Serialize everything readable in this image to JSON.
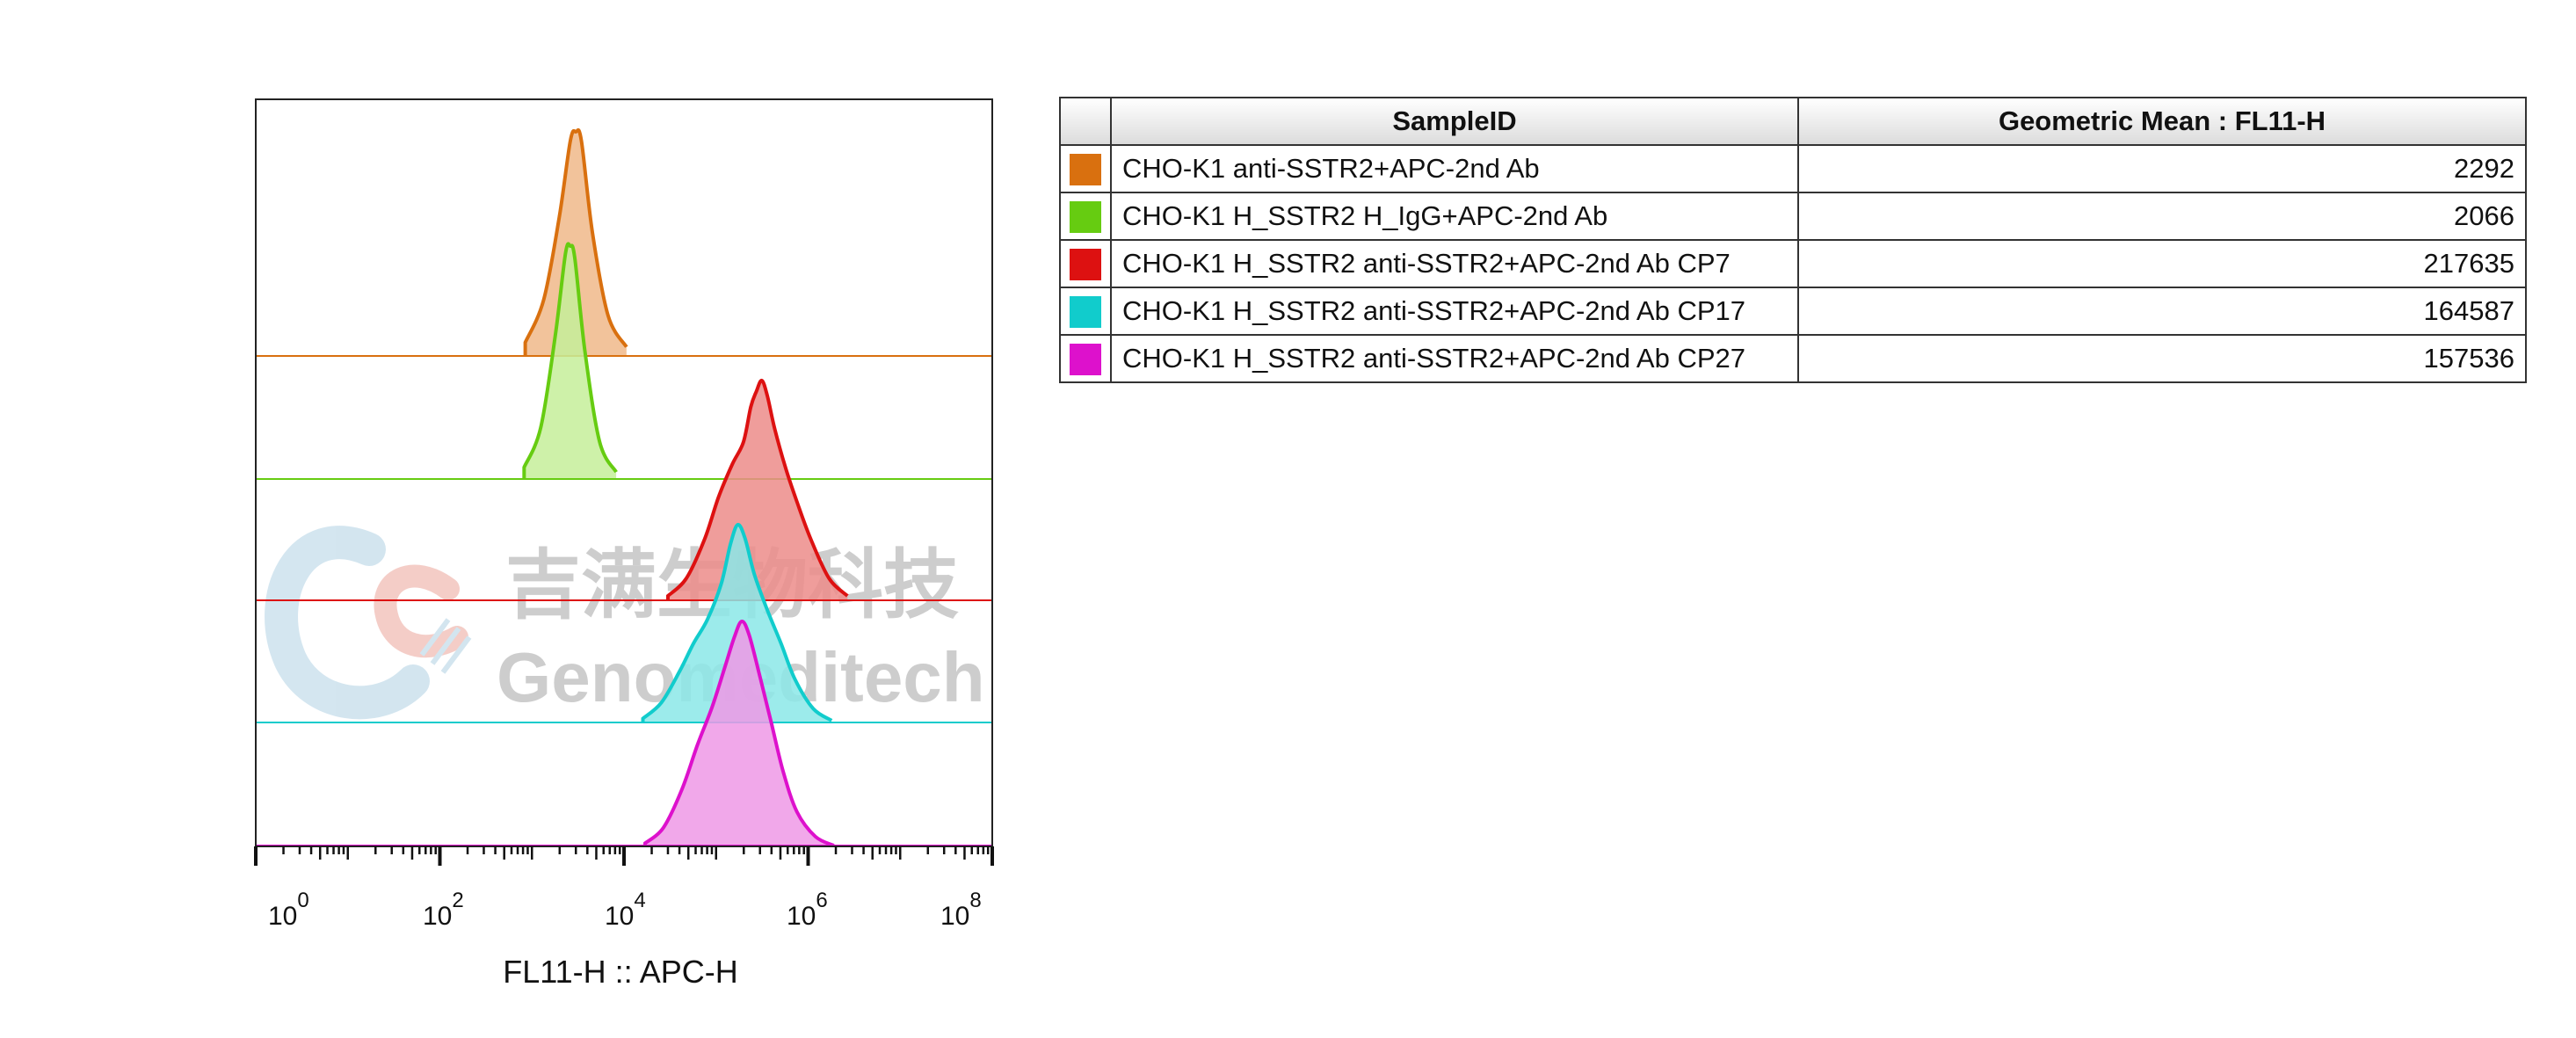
{
  "chart_data": {
    "type": "area",
    "subtype": "offset histogram overlay",
    "xlabel": "FL11-H :: APC-H",
    "x_scale": "log",
    "xlim": [
      1,
      100000000
    ],
    "x_ticks": [
      {
        "base": "10",
        "exp": "0",
        "value": 1
      },
      {
        "base": "10",
        "exp": "2",
        "value": 100
      },
      {
        "base": "10",
        "exp": "4",
        "value": 10000
      },
      {
        "base": "10",
        "exp": "6",
        "value": 1000000
      },
      {
        "base": "10",
        "exp": "8",
        "value": 100000000
      }
    ],
    "series": [
      {
        "name": "CHO-K1 anti-SSTR2+APC-2nd Ab",
        "color": "#d9700f",
        "fill": "#f0b88a",
        "peak_x": 3000,
        "peak_height": 1.0
      },
      {
        "name": "CHO-K1 H_SSTR2 H_IgG+APC-2nd Ab",
        "color": "#66cc11",
        "fill": "#c5ef9a",
        "peak_x": 2600,
        "peak_height": 1.0
      },
      {
        "name": "CHO-K1 H_SSTR2 anti-SSTR2+APC-2nd Ab CP7",
        "color": "#dd1111",
        "fill": "#ec8c8a",
        "peak_x": 300000,
        "peak_height": 1.0
      },
      {
        "name": "CHO-K1 H_SSTR2 anti-SSTR2+APC-2nd Ab CP17",
        "color": "#11cccc",
        "fill": "#8be8e8",
        "peak_x": 180000,
        "peak_height": 1.0
      },
      {
        "name": "CHO-K1 H_SSTR2 anti-SSTR2+APC-2nd Ab CP27",
        "color": "#dd11cc",
        "fill": "#ee99e6",
        "peak_x": 190000,
        "peak_height": 1.0
      }
    ]
  },
  "table": {
    "headers": [
      "",
      "SampleID",
      "Geometric Mean : FL11-H"
    ],
    "rows": [
      {
        "color": "#d9700f",
        "sample": "CHO-K1 anti-SSTR2+APC-2nd Ab",
        "value": "2292"
      },
      {
        "color": "#66cc11",
        "sample": "CHO-K1 H_SSTR2 H_IgG+APC-2nd Ab",
        "value": "2066"
      },
      {
        "color": "#dd1111",
        "sample": "CHO-K1 H_SSTR2 anti-SSTR2+APC-2nd Ab CP7",
        "value": "217635"
      },
      {
        "color": "#11cccc",
        "sample": "CHO-K1 H_SSTR2 anti-SSTR2+APC-2nd Ab CP17",
        "value": "164587"
      },
      {
        "color": "#dd11cc",
        "sample": "CHO-K1 H_SSTR2 anti-SSTR2+APC-2nd Ab CP27",
        "value": "157536"
      }
    ]
  },
  "watermark": {
    "cn": "吉满生物科技",
    "en": "Genomeditech"
  }
}
